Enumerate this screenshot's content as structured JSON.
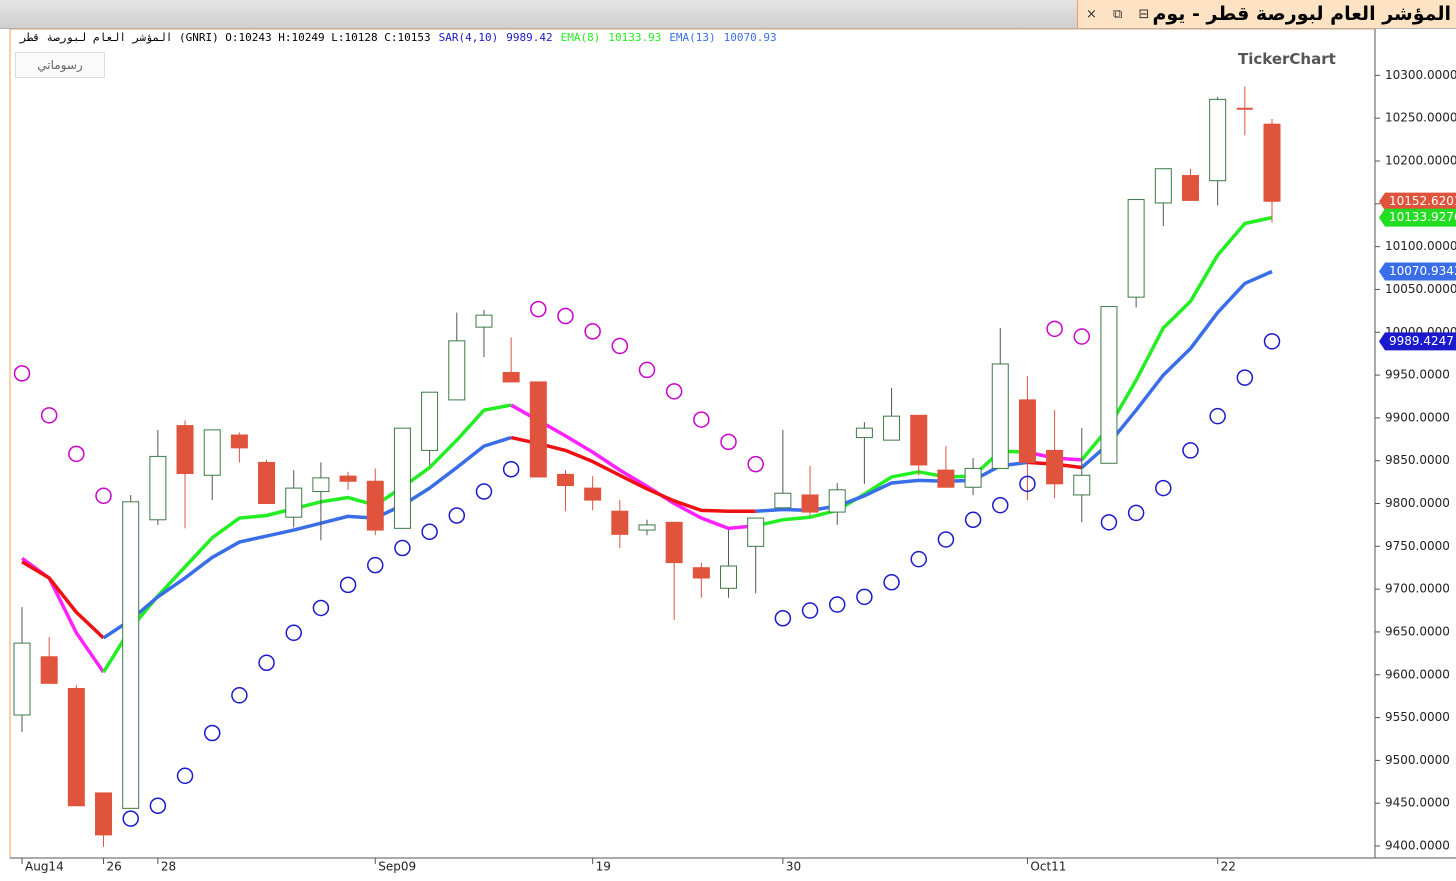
{
  "window": {
    "title": "المؤشر العام لبورصة قطر - يوم",
    "drawings_button": "رسوماتي",
    "watermark": "TickerChart"
  },
  "chart_data": {
    "type": "candlestick",
    "info": "المؤشر العام لبورصة قطر (GNRI)  O:10243  H:10249  L:10128  C:10153",
    "categories": [
      "Aug14",
      null,
      null,
      "26",
      null,
      "28",
      null,
      null,
      null,
      null,
      null,
      null,
      null,
      "Sep09",
      null,
      null,
      null,
      null,
      null,
      null,
      null,
      "19",
      null,
      null,
      null,
      null,
      null,
      null,
      "30",
      null,
      null,
      null,
      null,
      null,
      null,
      null,
      null,
      "Oct11",
      null,
      null,
      null,
      null,
      null,
      null,
      "22",
      null,
      null
    ],
    "open": [
      9553,
      9621,
      9584,
      9462,
      9444,
      9781,
      9891,
      9833,
      9880,
      9848,
      9784,
      9814,
      9832,
      9826,
      9771,
      9862,
      9921,
      10006,
      9953,
      9942,
      9834,
      9818,
      9791,
      9769,
      9778,
      9725,
      9701,
      9750,
      9795,
      9810,
      9790,
      9877,
      9874,
      9903,
      9839,
      9819,
      9841,
      9921,
      9862,
      9810,
      9847,
      10041,
      10151,
      10183,
      10177,
      10261,
      10243
    ],
    "high": [
      9679,
      9644,
      9588,
      9462,
      9810,
      9886,
      9897,
      9886,
      9883,
      9851,
      9839,
      9848,
      9837,
      9841,
      9888,
      9930,
      10023,
      10026,
      9994,
      9942,
      9839,
      9832,
      9804,
      9781,
      9778,
      9731,
      9769,
      9783,
      9886,
      9844,
      9824,
      9895,
      9935,
      9903,
      9867,
      9853,
      10005,
      9949,
      9909,
      9888,
      10030,
      10155,
      10191,
      10191,
      10275,
      10287,
      10249
    ],
    "low": [
      9533,
      9590,
      9447,
      9399,
      9444,
      9775,
      9771,
      9804,
      9848,
      9800,
      9772,
      9757,
      9816,
      9763,
      9771,
      9845,
      9921,
      9971,
      9942,
      9831,
      9791,
      9792,
      9748,
      9763,
      9664,
      9690,
      9690,
      9695,
      9795,
      9785,
      9775,
      9823,
      9874,
      9833,
      9819,
      9810,
      9841,
      9804,
      9806,
      9778,
      9847,
      10029,
      10124,
      10154,
      10148,
      10230,
      10128
    ],
    "close": [
      9637,
      9590,
      9447,
      9413,
      9802,
      9855,
      9835,
      9886,
      9865,
      9800,
      9818,
      9830,
      9826,
      9769,
      9888,
      9930,
      9990,
      10020,
      9942,
      9831,
      9821,
      9804,
      9764,
      9775,
      9731,
      9713,
      9727,
      9783,
      9812,
      9790,
      9816,
      9888,
      9902,
      9845,
      9819,
      9841,
      9963,
      9848,
      9823,
      9833,
      10030,
      10155,
      10191,
      10154,
      10272,
      10261,
      10153
    ],
    "up_color": "#ffffff",
    "down_color": "#e0533d",
    "doji_color": "#e0533d",
    "up_outline": "#3d7a45",
    "sar": {
      "name": "SAR(4,10)",
      "last_value": 9989.42,
      "color_below": "#1a1acc",
      "color_above": "#cc00cc",
      "values": [
        9952,
        9903,
        9858,
        9809,
        9432,
        9447,
        9482,
        9532,
        9576,
        9614,
        9649,
        9678,
        9705,
        9728,
        9748,
        9767,
        9786,
        9814,
        9840,
        10027,
        10019,
        10001,
        9984,
        9956,
        9931,
        9898,
        9872,
        9846,
        9666,
        9675,
        9682,
        9691,
        9708,
        9735,
        9758,
        9781,
        9798,
        9823,
        10004,
        9995,
        9778,
        9789,
        9818,
        9862,
        9902,
        9947,
        9989.42
      ]
    },
    "lines": [
      {
        "name": "EMA(8)",
        "last_value": 10133.93,
        "color": "#22ee22",
        "down_color": "#ff22ff",
        "values": [
          9736,
          9713,
          9649,
          9603,
          9654,
          9692,
          9726,
          9760,
          9783,
          9786,
          9794,
          9802,
          9807,
          9798,
          9819,
          9842,
          9874,
          9909,
          9915,
          9897,
          9879,
          9860,
          9839,
          9820,
          9800,
          9783,
          9771,
          9774,
          9781,
          9784,
          9792,
          9811,
          9831,
          9837,
          9831,
          9832,
          9861,
          9860,
          9853,
          9851,
          9889,
          9944,
          10005,
          10036,
          10090,
          10127,
          10133.93
        ]
      },
      {
        "name": "EMA(13)",
        "last_value": 10070.93,
        "color": "#3a6ee8",
        "down_color": "#ee1111",
        "values": [
          9732,
          9713,
          9673,
          9643,
          9664,
          9691,
          9713,
          9737,
          9755,
          9762,
          9769,
          9777,
          9785,
          9783,
          9798,
          9818,
          9842,
          9867,
          9877,
          9870,
          9862,
          9849,
          9833,
          9817,
          9803,
          9792,
          9791,
          9791,
          9793,
          9792,
          9797,
          9809,
          9824,
          9827,
          9826,
          9827,
          9844,
          9848,
          9846,
          9842,
          9870,
          9909,
          9950,
          9981,
          10023,
          10057,
          10070.93
        ]
      }
    ],
    "ylim": [
      9386,
      10353
    ],
    "yticks": [
      {
        "value": 9400,
        "label": "9400.0000"
      },
      {
        "value": 9450,
        "label": "9450.0000"
      },
      {
        "value": 9500,
        "label": "9500.0000"
      },
      {
        "value": 9550,
        "label": "9550.0000"
      },
      {
        "value": 9600,
        "label": "9600.0000"
      },
      {
        "value": 9650,
        "label": "9650.0000"
      },
      {
        "value": 9700,
        "label": "9700.0000"
      },
      {
        "value": 9750,
        "label": "9750.0000"
      },
      {
        "value": 9800,
        "label": "9800.0000"
      },
      {
        "value": 9850,
        "label": "9850.0000"
      },
      {
        "value": 9900,
        "label": "9900.0000"
      },
      {
        "value": 9950,
        "label": "9950.0000"
      },
      {
        "value": 10000,
        "label": "10000.0000"
      },
      {
        "value": 10050,
        "label": "10050.0000"
      },
      {
        "value": 10100,
        "label": "10100.0000"
      },
      {
        "value": 10150,
        "label": "10150.0000"
      },
      {
        "value": 10200,
        "label": "10200.0000"
      },
      {
        "value": 10250,
        "label": "10250.0000"
      },
      {
        "value": 10300,
        "label": "10300.0000"
      }
    ],
    "last_tags": [
      {
        "value": 10152.6201,
        "color": "#e0533d"
      },
      {
        "value": 10133.9276,
        "color": "#22dd22"
      },
      {
        "value": 10070.9342,
        "color": "#3a6ee8"
      },
      {
        "value": 9989.4247,
        "color": "#1a1acc"
      }
    ]
  }
}
